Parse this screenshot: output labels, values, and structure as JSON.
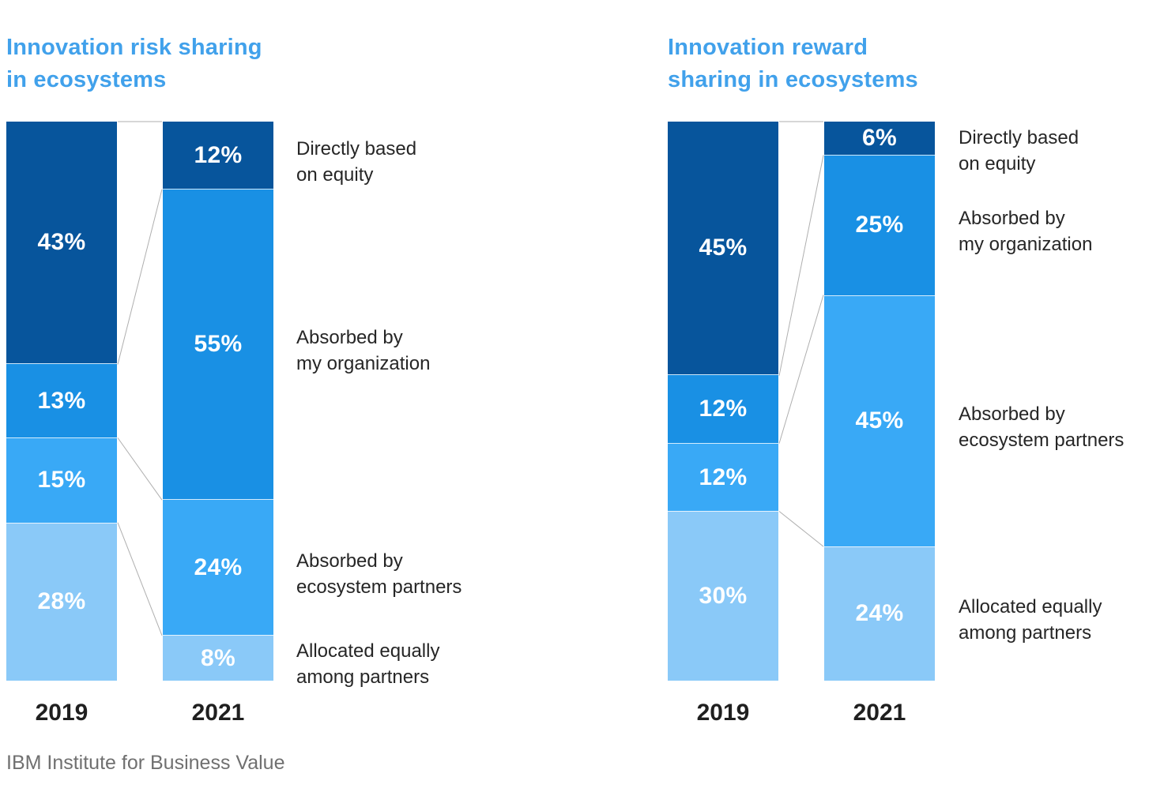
{
  "page": {
    "footer": "IBM Institute for Business Value"
  },
  "colors": {
    "segments": [
      "#07559C",
      "#1990E4",
      "#39A9F6",
      "#8AC9F8"
    ],
    "title": "#41A1EB",
    "value_label": "#FFFFFF",
    "year_label": "#1F1F1F",
    "category_label": "#262626",
    "connector": "#AFAFAF",
    "footer": "#707070",
    "background": "#FFFFFF"
  },
  "chart_data": [
    {
      "type": "bar",
      "stacked": true,
      "title": "Innovation risk sharing\nin ecosystems",
      "unit": "%",
      "categories": [
        "2019",
        "2021"
      ],
      "segment_labels": [
        "Directly based\non equity",
        "Absorbed by\nmy organization",
        "Absorbed by\necosystem partners",
        "Allocated equally\namong partners"
      ],
      "series": [
        {
          "name": "2019",
          "values": [
            43,
            13,
            15,
            28
          ]
        },
        {
          "name": "2021",
          "values": [
            12,
            55,
            24,
            8
          ]
        }
      ],
      "legend_position": "right",
      "grid": false
    },
    {
      "type": "bar",
      "stacked": true,
      "title": "Innovation reward\nsharing in ecosystems",
      "unit": "%",
      "categories": [
        "2019",
        "2021"
      ],
      "segment_labels": [
        "Directly based\non equity",
        "Absorbed by\nmy organization",
        "Absorbed by\necosystem partners",
        "Allocated equally\namong partners"
      ],
      "series": [
        {
          "name": "2019",
          "values": [
            45,
            12,
            12,
            30
          ]
        },
        {
          "name": "2021",
          "values": [
            6,
            25,
            45,
            24
          ]
        }
      ],
      "legend_position": "right",
      "grid": false
    }
  ]
}
